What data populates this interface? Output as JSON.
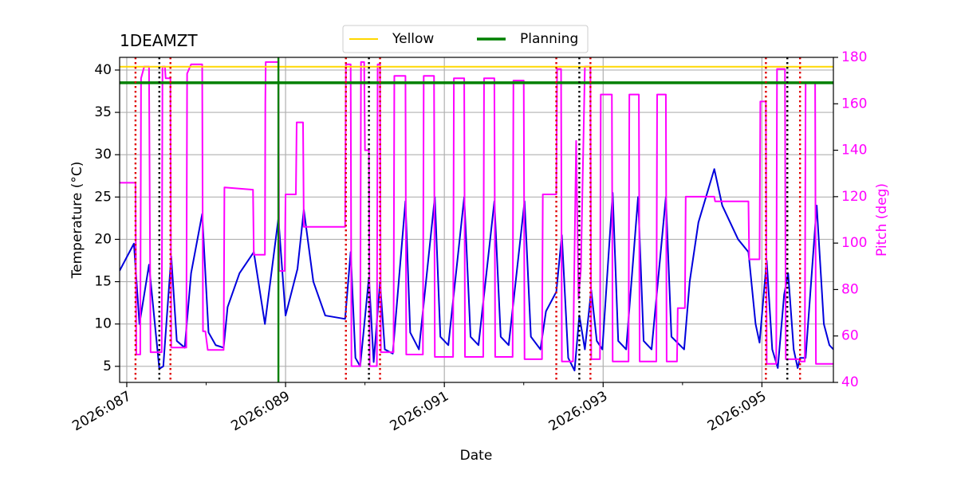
{
  "chart_data": {
    "type": "line",
    "title": "1DEAMZT",
    "xlabel": "Date",
    "ylabel": "Temperature (°C)",
    "y2label": "Pitch (deg)",
    "xlim": [
      86.91,
      95.9
    ],
    "xticks": [
      {
        "value": 87,
        "label": "2026:087"
      },
      {
        "value": 89,
        "label": "2026:089"
      },
      {
        "value": 91,
        "label": "2026:091"
      },
      {
        "value": 93,
        "label": "2026:093"
      },
      {
        "value": 95,
        "label": "2026:095"
      }
    ],
    "xticks_minor": [
      88,
      90,
      92,
      94
    ],
    "ylim": [
      3.1,
      41.5
    ],
    "yticks": [
      5,
      10,
      15,
      20,
      25,
      30,
      35,
      40
    ],
    "y2lim": [
      40,
      180
    ],
    "y2ticks": [
      40,
      60,
      80,
      100,
      120,
      140,
      160,
      180
    ],
    "y2color": "#ff00ff",
    "grid": true,
    "legend_loc": "upper center",
    "series": [
      {
        "color": "#0000dd",
        "x": [
          86.91,
          87.09,
          87.16,
          87.28,
          87.41,
          87.46,
          87.56,
          87.63,
          87.73,
          87.81,
          87.95,
          88.03,
          88.12,
          88.22,
          88.27,
          88.42,
          88.6,
          88.74,
          88.91,
          89.0,
          89.15,
          89.23,
          89.35,
          89.5,
          89.75,
          89.82,
          89.88,
          89.94,
          90.05,
          90.11,
          90.19,
          90.25,
          90.35,
          90.51,
          90.57,
          90.68,
          90.88,
          90.95,
          91.05,
          91.25,
          91.33,
          91.43,
          91.63,
          91.71,
          91.81,
          92.01,
          92.09,
          92.21,
          92.28,
          92.41,
          92.48,
          92.56,
          92.64,
          92.7,
          92.77,
          92.85,
          92.92,
          92.99,
          93.12,
          93.19,
          93.29,
          93.44,
          93.51,
          93.61,
          93.79,
          93.86,
          94.02,
          94.09,
          94.2,
          94.4,
          94.5,
          94.7,
          94.83,
          94.92,
          94.97,
          95.06,
          95.13,
          95.2,
          95.28,
          95.33,
          95.4,
          95.45,
          95.48,
          95.55,
          95.69,
          95.78,
          95.85,
          95.9
        ],
        "values": [
          16.3,
          19.5,
          10,
          17,
          4.7,
          5,
          18,
          8,
          7.2,
          16,
          23,
          9,
          7.5,
          7.2,
          12,
          16,
          18.5,
          10,
          22.5,
          11,
          16.5,
          23.5,
          15,
          11,
          10.6,
          18.5,
          6,
          5,
          15.5,
          5.5,
          15,
          7,
          6.5,
          24.5,
          9,
          7,
          25,
          8.5,
          7.5,
          25,
          8.5,
          7.5,
          24.5,
          8.5,
          7.5,
          24.5,
          8.5,
          7,
          11.5,
          13.8,
          20.5,
          6,
          4.5,
          11,
          7,
          14,
          8,
          7,
          25.5,
          8,
          7,
          25,
          8,
          7,
          25,
          8.5,
          7,
          15,
          22,
          28.3,
          24,
          20,
          18.5,
          10,
          7.8,
          17.5,
          7,
          4.8,
          13.5,
          16,
          7,
          4.8,
          6,
          6,
          24,
          10,
          7.5,
          7
        ]
      },
      {
        "color": "#ff00ff",
        "axis": "y2",
        "x": [
          86.91,
          87.11,
          87.12,
          87.17,
          87.18,
          87.22,
          87.28,
          87.3,
          87.44,
          87.45,
          87.48,
          87.49,
          87.55,
          87.56,
          87.75,
          87.76,
          87.81,
          87.95,
          87.96,
          87.99,
          88.02,
          88.22,
          88.23,
          88.59,
          88.6,
          88.74,
          88.745,
          88.75,
          88.91,
          88.92,
          88.99,
          89.0,
          89.13,
          89.14,
          89.22,
          89.23,
          89.75,
          89.76,
          89.82,
          89.83,
          89.94,
          89.95,
          89.99,
          90.0,
          90.05,
          90.06,
          90.15,
          90.16,
          90.19,
          90.2,
          90.36,
          90.37,
          90.51,
          90.52,
          90.73,
          90.74,
          90.87,
          90.88,
          91.11,
          91.12,
          91.25,
          91.26,
          91.49,
          91.5,
          91.63,
          91.64,
          91.86,
          91.87,
          92.0,
          92.01,
          92.23,
          92.24,
          92.41,
          92.42,
          92.47,
          92.48,
          92.62,
          92.66,
          92.69,
          92.72,
          92.77,
          92.84,
          92.85,
          92.96,
          92.97,
          93.11,
          93.12,
          93.32,
          93.33,
          93.45,
          93.46,
          93.67,
          93.68,
          93.79,
          93.8,
          93.93,
          93.94,
          94.03,
          94.04,
          94.4,
          94.41,
          94.83,
          94.84,
          94.97,
          94.98,
          95.05,
          95.06,
          95.18,
          95.19,
          95.29,
          95.3,
          95.47,
          95.48,
          95.54,
          95.55,
          95.67,
          95.68,
          95.9
        ],
        "values": [
          126,
          126,
          52,
          52,
          171,
          176,
          176,
          53,
          53,
          176,
          176,
          171,
          171,
          55,
          55,
          173,
          177,
          177,
          62,
          62,
          54,
          54,
          124,
          123,
          95,
          95,
          160,
          178,
          178,
          88,
          88,
          121,
          121,
          152,
          152,
          107,
          107,
          177,
          177,
          47,
          47,
          178,
          178,
          140,
          140,
          47,
          47,
          177,
          177,
          53,
          53,
          172,
          172,
          52,
          52,
          172,
          172,
          51,
          51,
          171,
          171,
          51,
          51,
          171,
          171,
          51,
          51,
          170,
          170,
          50,
          50,
          121,
          121,
          175,
          175,
          49,
          49,
          144,
          76,
          89,
          176,
          176,
          50,
          50,
          164,
          164,
          49,
          49,
          164,
          164,
          49,
          49,
          164,
          164,
          49,
          49,
          72,
          72,
          120,
          120,
          118,
          118,
          93,
          93,
          161,
          161,
          48,
          48,
          175,
          175,
          50,
          50,
          49,
          49,
          169,
          169,
          48,
          48
        ]
      }
    ],
    "hlines": [
      {
        "name": "Yellow",
        "color": "#ffd700",
        "y": 40.4
      },
      {
        "name": "Planning",
        "color": "#008000",
        "y": 38.5
      }
    ],
    "vlines": [
      {
        "color": "#e00000",
        "style": "dotted",
        "x": [
          87.11,
          87.55,
          89.76,
          90.19,
          92.41,
          92.84,
          95.05,
          95.48
        ]
      },
      {
        "color": "#000000",
        "style": "dotted",
        "x": [
          87.41,
          90.05,
          92.7,
          95.32
        ]
      },
      {
        "color": "#008000",
        "style": "solid",
        "x": [
          88.91
        ]
      }
    ]
  }
}
